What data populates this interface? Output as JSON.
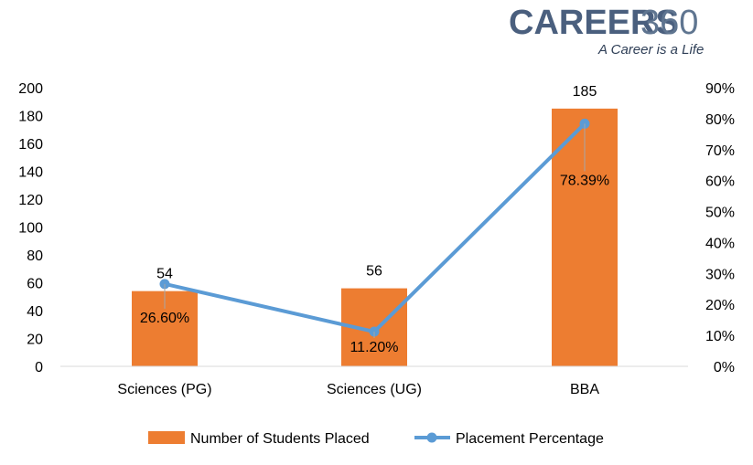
{
  "logo": {
    "name_bold": "CAREERS",
    "name_number": "360",
    "tagline": "A Career is a Life"
  },
  "chart_data": {
    "type": "bar",
    "categories": [
      "Sciences (PG)",
      "Sciences (UG)",
      "BBA"
    ],
    "series": [
      {
        "name": "Number of Students Placed",
        "kind": "bar",
        "axis": "left",
        "color": "#ed7d31",
        "values": [
          54,
          56,
          185
        ],
        "labels": [
          "54",
          "56",
          "185"
        ]
      },
      {
        "name": "Placement Percentage",
        "kind": "line",
        "axis": "right",
        "color": "#5b9bd5",
        "values": [
          26.6,
          11.2,
          78.39
        ],
        "labels": [
          "26.60%",
          "11.20%",
          "78.39%"
        ]
      }
    ],
    "y_left": {
      "range": [
        0,
        200
      ],
      "ticks": [
        "0",
        "20",
        "40",
        "60",
        "80",
        "100",
        "120",
        "140",
        "160",
        "180",
        "200"
      ]
    },
    "y_right": {
      "range": [
        0,
        90
      ],
      "ticks": [
        "0%",
        "10%",
        "20%",
        "30%",
        "40%",
        "50%",
        "60%",
        "70%",
        "80%",
        "90%"
      ]
    },
    "grid": false,
    "legend_position": "bottom"
  }
}
